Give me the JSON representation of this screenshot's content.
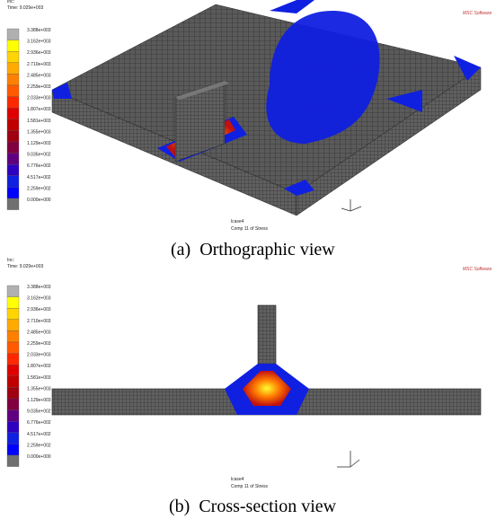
{
  "panels": [
    {
      "header": "Time: 9.029e+003",
      "legend": [
        "3.388e+003",
        "3.162e+003",
        "2.936e+003",
        "2.710e+003",
        "2.485e+003",
        "2.259e+003",
        "2.033e+003",
        "1.807e+003",
        "1.581e+003",
        "1.355e+003",
        "1.129e+003",
        "9.035e+002",
        "6.776e+002",
        "4.517e+002",
        "2.259e+002",
        "0.000e+000"
      ],
      "load_case": "lcase4",
      "result": "Comp 11 of Stress",
      "logo": "MSC Software",
      "caption": "(a)  Orthographic view"
    },
    {
      "header": "Time: 9.029e+003",
      "legend": [
        "3.388e+003",
        "3.162e+003",
        "2.936e+003",
        "2.710e+003",
        "2.485e+003",
        "2.259e+003",
        "2.033e+003",
        "1.807e+003",
        "1.581e+003",
        "1.355e+003",
        "1.129e+003",
        "9.035e+002",
        "6.776e+002",
        "4.517e+002",
        "2.259e+002",
        "0.000e+000"
      ],
      "load_case": "lcase4",
      "result": "Comp 11 of Stress",
      "logo": "MSC Software",
      "caption": "(b)  Cross-section view"
    }
  ]
}
